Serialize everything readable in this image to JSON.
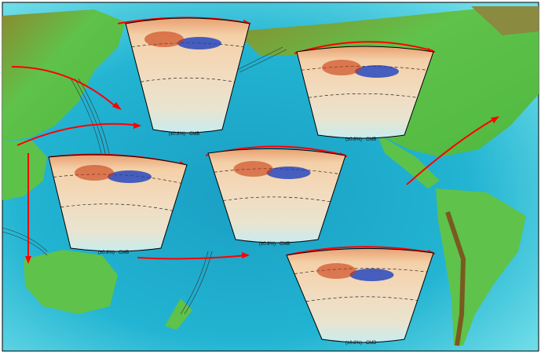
{
  "map": {
    "colors": {
      "ocean_deep": "#1aa6c8",
      "ocean_shallow": "#7fe6ef",
      "land_low": "#5cc24a",
      "land_high": "#9a7a2a",
      "arrow": "#ff0000"
    },
    "sections": [
      {
        "id": "s1",
        "label": "(±0.8%)   CMB"
      },
      {
        "id": "s2",
        "label": "(±0.8%)   CMB"
      },
      {
        "id": "s3",
        "label": "(±0.8%)   CMB"
      },
      {
        "id": "s4",
        "label": "(±0.8%)   CMB"
      },
      {
        "id": "s5",
        "label": "(±0.8%)   CMB"
      }
    ]
  }
}
